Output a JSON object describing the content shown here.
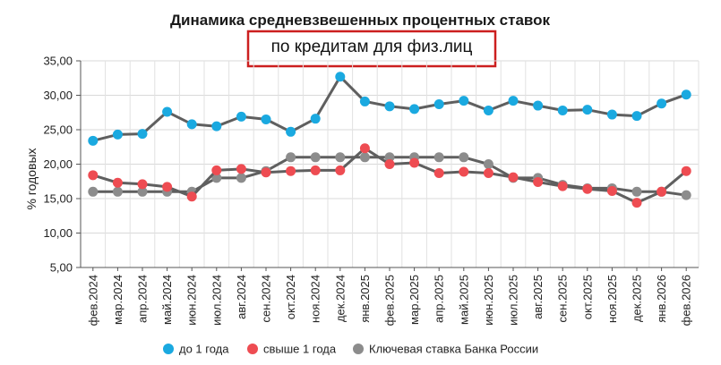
{
  "chart_data": {
    "type": "line",
    "title": "Динамика средневзвешенных процентных ставок",
    "subtitle": "по кредитам для физ.лиц",
    "ylabel": "% годовых",
    "ylim": [
      5,
      35
    ],
    "yticks": [
      "5,00",
      "10,00",
      "15,00",
      "20,00",
      "25,00",
      "30,00",
      "35,00"
    ],
    "ytick_values": [
      5,
      10,
      15,
      20,
      25,
      30,
      35
    ],
    "grid": true,
    "legend_position": "bottom",
    "categories": [
      "фев.2024",
      "мар.2024",
      "апр.2024",
      "май.2024",
      "июн.2024",
      "июл.2024",
      "авг.2024",
      "сен.2024",
      "окт.2024",
      "ноя.2024",
      "дек.2024",
      "янв.2025",
      "фев.2025",
      "мар.2025",
      "апр.2025",
      "май.2025",
      "июн.2025",
      "июл.2025",
      "авг.2025",
      "сен.2025",
      "окт.2025",
      "ноя.2025",
      "дек.2025",
      "янв.2026",
      "фев.2026"
    ],
    "series": [
      {
        "name": "до 1 года",
        "color": "#1aa9e0",
        "values": [
          23.4,
          24.3,
          24.4,
          27.6,
          25.8,
          25.5,
          26.9,
          26.5,
          24.7,
          26.6,
          32.7,
          29.1,
          28.4,
          28.0,
          28.7,
          29.2,
          27.8,
          29.2,
          28.5,
          27.8,
          27.9,
          27.2,
          27.0,
          28.8,
          30.1
        ]
      },
      {
        "name": "свыше 1 года",
        "color": "#ee4c52",
        "values": [
          18.4,
          17.3,
          17.1,
          16.7,
          15.3,
          19.1,
          19.3,
          18.8,
          19.0,
          19.1,
          19.1,
          22.3,
          20.0,
          20.2,
          18.7,
          18.9,
          18.7,
          18.1,
          17.4,
          16.8,
          16.4,
          16.1,
          14.4,
          16.0,
          19.0
        ]
      },
      {
        "name": "Ключевая ставка Банка России",
        "color": "#8c8c8c",
        "values": [
          16.0,
          16.0,
          16.0,
          16.0,
          16.0,
          18.0,
          18.0,
          19.0,
          21.0,
          21.0,
          21.0,
          21.0,
          21.0,
          21.0,
          21.0,
          21.0,
          20.0,
          18.0,
          18.0,
          17.0,
          16.5,
          16.5,
          16.0,
          16.0,
          15.5
        ]
      }
    ]
  }
}
